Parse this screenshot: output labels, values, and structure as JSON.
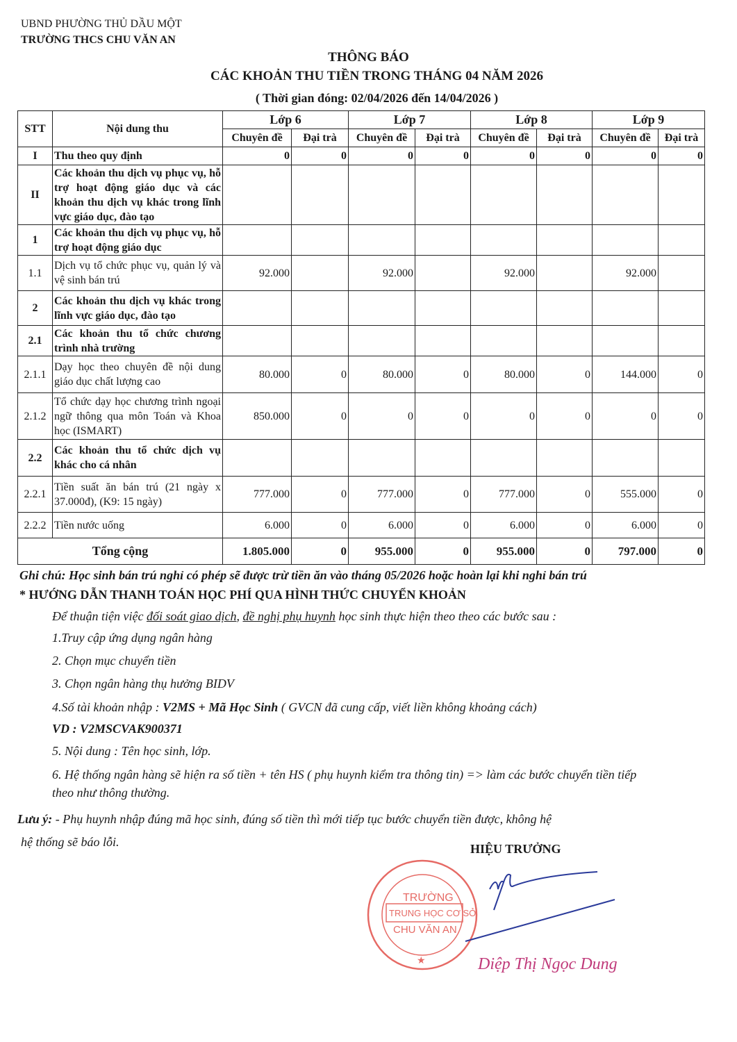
{
  "header": {
    "authority": "UBND PHƯỜNG THỦ DẦU MỘT",
    "school": "TRƯỜNG THCS CHU VĂN AN"
  },
  "title": {
    "line1": "THÔNG BÁO",
    "line2": "CÁC KHOẢN THU TIỀN TRONG THÁNG 04 NĂM 2026",
    "line3": "( Thời gian đóng:  02/04/2026 đến 14/04/2026 )"
  },
  "table": {
    "headers": {
      "stt": "STT",
      "content": "Nội dung thu",
      "grades": [
        "Lớp 6",
        "Lớp 7",
        "Lớp 8",
        "Lớp 9"
      ],
      "sub": [
        "Chuyên đề",
        "Đại trà"
      ]
    },
    "rows": [
      {
        "stt": "I",
        "content": "Thu theo quy định",
        "bold": true,
        "values": [
          "0",
          "0",
          "0",
          "0",
          "0",
          "0",
          "0",
          "0"
        ]
      },
      {
        "stt": "II",
        "content": "Các khoản thu dịch vụ phục vụ, hỗ trợ hoạt động giáo dục và các khoản thu dịch vụ khác trong lĩnh vực giáo dục, đào tạo",
        "bold": true,
        "values": [
          "",
          "",
          "",
          "",
          "",
          "",
          "",
          ""
        ]
      },
      {
        "stt": "1",
        "content": "Các khoản thu dịch vụ phục vụ, hỗ trợ hoạt động giáo dục",
        "bold": true,
        "values": [
          "",
          "",
          "",
          "",
          "",
          "",
          "",
          ""
        ]
      },
      {
        "stt": "1.1",
        "content": "Dịch vụ tổ chức phục vụ, quản lý và vệ sinh bán trú",
        "bold": false,
        "values": [
          "92.000",
          "",
          "92.000",
          "",
          "92.000",
          "",
          "92.000",
          ""
        ]
      },
      {
        "stt": "2",
        "content": "Các khoản thu dịch vụ khác trong lĩnh vực giáo dục, đào tạo",
        "bold": true,
        "values": [
          "",
          "",
          "",
          "",
          "",
          "",
          "",
          ""
        ]
      },
      {
        "stt": "2.1",
        "content": "Các khoản thu tổ chức chương trình nhà trường",
        "bold": true,
        "values": [
          "",
          "",
          "",
          "",
          "",
          "",
          "",
          ""
        ]
      },
      {
        "stt": "2.1.1",
        "content": "Dạy học theo chuyên đề nội dung giáo dục chất lượng cao",
        "bold": false,
        "values": [
          "80.000",
          "0",
          "80.000",
          "0",
          "80.000",
          "0",
          "144.000",
          "0"
        ]
      },
      {
        "stt": "2.1.2",
        "content": "Tổ chức dạy học chương trình ngoại ngữ thông qua môn Toán và Khoa học (ISMART)",
        "bold": false,
        "values": [
          "850.000",
          "0",
          "0",
          "0",
          "0",
          "0",
          "0",
          "0"
        ]
      },
      {
        "stt": "2.2",
        "content": "Các khoản thu tổ chức dịch vụ khác cho cá nhân",
        "bold": true,
        "values": [
          "",
          "",
          "",
          "",
          "",
          "",
          "",
          ""
        ]
      },
      {
        "stt": "2.2.1",
        "content": "Tiền suất ăn bán trú (21 ngày x 37.000đ), (K9: 15 ngày)",
        "bold": false,
        "values": [
          "777.000",
          "0",
          "777.000",
          "0",
          "777.000",
          "0",
          "555.000",
          "0"
        ]
      },
      {
        "stt": "2.2.2",
        "content": "Tiền nước uống",
        "bold": false,
        "values": [
          "6.000",
          "0",
          "6.000",
          "0",
          "6.000",
          "0",
          "6.000",
          "0"
        ]
      }
    ],
    "total": {
      "label": "Tổng cộng",
      "values": [
        "1.805.000",
        "0",
        "955.000",
        "0",
        "955.000",
        "0",
        "797.000",
        "0"
      ]
    }
  },
  "notes": {
    "ghi_chu": "Ghi chú: Học sinh bán trú nghỉ có phép sẽ được trừ tiền ăn vào tháng 05/2026 hoặc hoàn lại khi nghỉ bán trú",
    "guide_title": "* HƯỚNG DẪN THANH TOÁN HỌC PHÍ QUA HÌNH THỨC CHUYỂN KHOẢN",
    "intro_a": "Để thuận tiện việc ",
    "intro_u1": "đối soát giao dịch",
    "intro_b": ", ",
    "intro_u2": "đề nghị phụ huynh",
    "intro_c": " học sinh thực hiện theo theo các bước sau  :",
    "step1": "1.Truy cập ứng dụng ngân hàng",
    "step2": "2. Chọn mục chuyển tiền",
    "step3": "3. Chọn ngân hàng thụ hưởng BIDV",
    "step4_a": "4.Số tài khoản nhập :  ",
    "step4_b": "V2MS + Mã Học Sinh",
    "step4_c": "  ( GVCN đã cung cấp, viết liền không khoảng cách)",
    "example": "VD : V2MSCVAK900371",
    "step5": "5. Nội dung : Tên học sinh, lớp.",
    "step6_1": "6. Hệ thống ngân hàng sẽ hiện ra số tiền + tên HS ( phụ huynh kiểm tra thông tin) => làm các bước chuyển tiền tiếp",
    "step6_2": "theo như thông thường.",
    "luu_y_label": "Lưu ý:",
    "luu_y_1": "  - Phụ huynh nhập đúng mã học sinh, đúng số tiền thì mới tiếp tục bước chuyển tiền được, không hệ",
    "luu_y_2": "hệ thống sẽ báo lỗi."
  },
  "signature": {
    "title": "HIỆU TRƯỞNG",
    "name": "Diệp Thị Ngọc Dung",
    "stamp_text": "TRƯỜNG TRUNG HỌC CƠ SỞ CHU VĂN AN",
    "stamp_color": "#e0463f",
    "sign_color": "#2a3a9a"
  }
}
